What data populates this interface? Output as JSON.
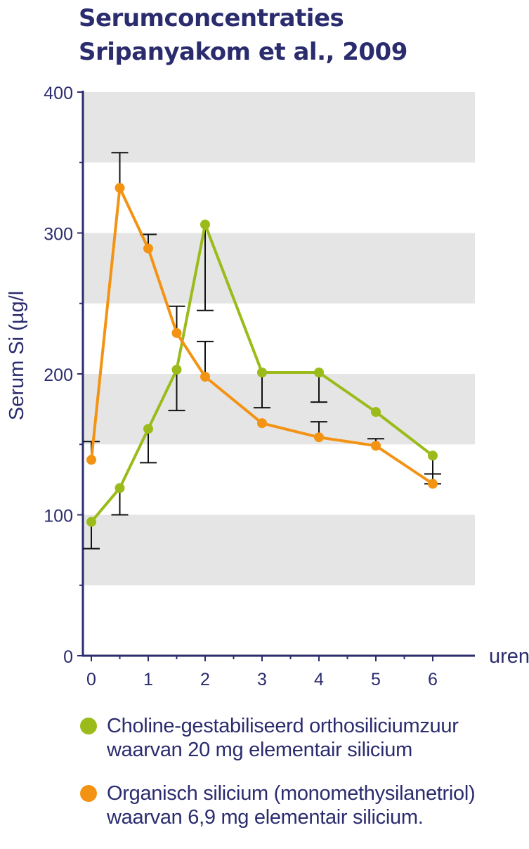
{
  "chart_data": {
    "type": "line",
    "title_lines": [
      "Serumconcentraties",
      "Sripanyakom et al., 2009"
    ],
    "ylabel": "Serum Si (µg/l",
    "xlabel": "uren",
    "ylim": [
      0,
      400
    ],
    "xlim": [
      0,
      6
    ],
    "yticks": [
      "0",
      "100",
      "200",
      "300",
      "400"
    ],
    "xticks": [
      "0",
      "1",
      "2",
      "3",
      "4",
      "5",
      "6"
    ],
    "banded_background": true,
    "legend_position": "bottom",
    "series": [
      {
        "name_lines": [
          "Choline-gestabiliseerd orthosiliciumzuur",
          "waarvan 20 mg elementair silicium"
        ],
        "color": "#9bbb1a",
        "x": [
          0,
          0.5,
          1,
          1.5,
          2,
          3,
          4,
          5,
          6
        ],
        "y": [
          95,
          119,
          161,
          203,
          306,
          201,
          201,
          173,
          142
        ],
        "error_low": [
          76,
          100,
          137,
          174,
          245,
          176,
          180,
          null,
          122
        ]
      },
      {
        "name_lines": [
          "Organisch silicium (monomethysilanetriol)",
          "waarvan 6,9 mg elementair silicium."
        ],
        "color": "#f39314",
        "x": [
          0,
          0.5,
          1,
          1.5,
          2,
          3,
          4,
          5,
          6
        ],
        "y": [
          139,
          332,
          289,
          229,
          198,
          165,
          155,
          149,
          122
        ],
        "error_high": [
          152,
          357,
          299,
          248,
          223,
          null,
          166,
          154,
          129
        ]
      }
    ]
  }
}
